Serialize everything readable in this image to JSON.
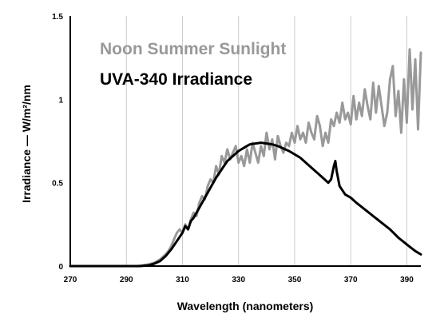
{
  "chart_data": {
    "type": "line",
    "title": "",
    "xlabel": "Wavelength (nanometers)",
    "ylabel": "Irradiance — W/m²/nm",
    "xlim": [
      270,
      395
    ],
    "ylim": [
      0,
      1.5
    ],
    "xticks": [
      270,
      290,
      310,
      330,
      350,
      370,
      390
    ],
    "xtick_labels": [
      "270",
      "290",
      "310",
      "330",
      "350",
      "370",
      "390"
    ],
    "yticks": [
      0,
      0.5,
      1,
      1.5
    ],
    "ytick_labels": [
      "0",
      "0.5",
      "1",
      "1.5"
    ],
    "grid": "vertical",
    "legend_position": "top-left",
    "series": [
      {
        "name": "Noon Summer Sunlight",
        "color": "#999999",
        "points": [
          [
            270,
            0
          ],
          [
            290,
            0
          ],
          [
            294,
            0.0
          ],
          [
            296,
            0.005
          ],
          [
            298,
            0.01
          ],
          [
            300,
            0.02
          ],
          [
            302,
            0.04
          ],
          [
            304,
            0.07
          ],
          [
            305,
            0.09
          ],
          [
            306,
            0.12
          ],
          [
            307,
            0.16
          ],
          [
            308,
            0.2
          ],
          [
            309,
            0.22
          ],
          [
            310,
            0.2
          ],
          [
            311,
            0.25
          ],
          [
            312,
            0.22
          ],
          [
            313,
            0.28
          ],
          [
            314,
            0.32
          ],
          [
            315,
            0.3
          ],
          [
            316,
            0.38
          ],
          [
            317,
            0.42
          ],
          [
            318,
            0.4
          ],
          [
            319,
            0.48
          ],
          [
            320,
            0.52
          ],
          [
            321,
            0.5
          ],
          [
            322,
            0.6
          ],
          [
            323,
            0.55
          ],
          [
            324,
            0.66
          ],
          [
            325,
            0.62
          ],
          [
            326,
            0.7
          ],
          [
            327,
            0.64
          ],
          [
            328,
            0.68
          ],
          [
            329,
            0.72
          ],
          [
            330,
            0.62
          ],
          [
            331,
            0.66
          ],
          [
            332,
            0.6
          ],
          [
            333,
            0.7
          ],
          [
            334,
            0.62
          ],
          [
            335,
            0.74
          ],
          [
            336,
            0.68
          ],
          [
            337,
            0.62
          ],
          [
            338,
            0.72
          ],
          [
            339,
            0.66
          ],
          [
            340,
            0.8
          ],
          [
            341,
            0.7
          ],
          [
            342,
            0.76
          ],
          [
            343,
            0.64
          ],
          [
            344,
            0.78
          ],
          [
            345,
            0.72
          ],
          [
            346,
            0.68
          ],
          [
            347,
            0.74
          ],
          [
            348,
            0.72
          ],
          [
            349,
            0.8
          ],
          [
            350,
            0.74
          ],
          [
            351,
            0.84
          ],
          [
            352,
            0.76
          ],
          [
            353,
            0.8
          ],
          [
            354,
            0.74
          ],
          [
            355,
            0.86
          ],
          [
            356,
            0.8
          ],
          [
            357,
            0.76
          ],
          [
            358,
            0.9
          ],
          [
            359,
            0.84
          ],
          [
            360,
            0.72
          ],
          [
            361,
            0.8
          ],
          [
            362,
            0.74
          ],
          [
            363,
            0.88
          ],
          [
            364,
            0.84
          ],
          [
            365,
            0.92
          ],
          [
            366,
            0.86
          ],
          [
            367,
            0.98
          ],
          [
            368,
            0.88
          ],
          [
            369,
            0.92
          ],
          [
            370,
            0.85
          ],
          [
            371,
            1.02
          ],
          [
            372,
            0.88
          ],
          [
            373,
            0.98
          ],
          [
            374,
            0.9
          ],
          [
            375,
            1.06
          ],
          [
            376,
            0.96
          ],
          [
            377,
            0.88
          ],
          [
            378,
            1.1
          ],
          [
            379,
            0.92
          ],
          [
            380,
            1.08
          ],
          [
            381,
            0.96
          ],
          [
            382,
            0.84
          ],
          [
            383,
            0.92
          ],
          [
            384,
            1.12
          ],
          [
            385,
            1.2
          ],
          [
            386,
            0.9
          ],
          [
            387,
            1.05
          ],
          [
            388,
            0.8
          ],
          [
            389,
            1.12
          ],
          [
            390,
            0.86
          ],
          [
            391,
            1.3
          ],
          [
            392,
            0.94
          ],
          [
            393,
            1.24
          ],
          [
            394,
            0.82
          ],
          [
            395,
            1.28
          ]
        ]
      },
      {
        "name": "UVA-340 Irradiance",
        "color": "#000000",
        "points": [
          [
            270,
            0
          ],
          [
            295,
            0
          ],
          [
            298,
            0.005
          ],
          [
            300,
            0.015
          ],
          [
            302,
            0.03
          ],
          [
            304,
            0.06
          ],
          [
            306,
            0.1
          ],
          [
            308,
            0.15
          ],
          [
            310,
            0.2
          ],
          [
            311,
            0.24
          ],
          [
            312,
            0.22
          ],
          [
            313,
            0.27
          ],
          [
            314,
            0.29
          ],
          [
            316,
            0.35
          ],
          [
            318,
            0.41
          ],
          [
            320,
            0.47
          ],
          [
            322,
            0.53
          ],
          [
            324,
            0.58
          ],
          [
            326,
            0.63
          ],
          [
            328,
            0.66
          ],
          [
            330,
            0.69
          ],
          [
            332,
            0.71
          ],
          [
            334,
            0.73
          ],
          [
            336,
            0.735
          ],
          [
            338,
            0.74
          ],
          [
            340,
            0.735
          ],
          [
            342,
            0.73
          ],
          [
            344,
            0.72
          ],
          [
            346,
            0.705
          ],
          [
            348,
            0.69
          ],
          [
            350,
            0.67
          ],
          [
            352,
            0.65
          ],
          [
            354,
            0.62
          ],
          [
            356,
            0.59
          ],
          [
            358,
            0.56
          ],
          [
            360,
            0.53
          ],
          [
            362,
            0.5
          ],
          [
            363,
            0.52
          ],
          [
            364,
            0.6
          ],
          [
            364.5,
            0.63
          ],
          [
            365,
            0.57
          ],
          [
            366,
            0.48
          ],
          [
            368,
            0.43
          ],
          [
            370,
            0.41
          ],
          [
            372,
            0.38
          ],
          [
            375,
            0.34
          ],
          [
            378,
            0.3
          ],
          [
            381,
            0.26
          ],
          [
            384,
            0.22
          ],
          [
            387,
            0.17
          ],
          [
            390,
            0.13
          ],
          [
            393,
            0.09
          ],
          [
            395,
            0.07
          ]
        ]
      }
    ]
  }
}
